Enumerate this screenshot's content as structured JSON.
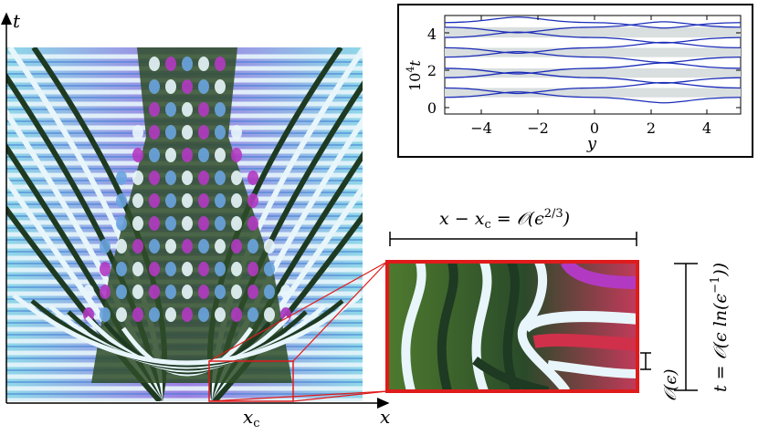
{
  "main_axes": {
    "x_label": "x",
    "t_label": "t",
    "xc_label": "x",
    "xc_sub": "c"
  },
  "inset": {
    "y_label": "10",
    "y_label_sup": "4",
    "y_label_var": "t",
    "x_label": "y",
    "x_ticks": [
      "−4",
      "−2",
      "0",
      "2",
      "4"
    ],
    "y_ticks": [
      "0",
      "2",
      "4"
    ]
  },
  "annotations": {
    "width_scale": "x − x_c = O(ε^{2/3})",
    "width_lhs": "x − x",
    "width_sub": "c",
    "width_rhs": " = 𝒪(ϵ",
    "width_exp": "2/3",
    "width_close": ")",
    "small_scale": "𝒪(ϵ)",
    "time_scale": "t = 𝒪(ϵ ln(ϵ",
    "time_exp": "−1",
    "time_close": "))"
  },
  "colors": {
    "stripe_dark": "#1e3a22",
    "stripe_green": "#5f7a30",
    "stripe_light": "#e8f6fb",
    "stripe_blue": "#6aa4e0",
    "background_purple": "#9a7fe0",
    "highlight_red": "#e01b1b",
    "inset_curve": "#1b2db8",
    "inset_band": "#d9dedf"
  }
}
